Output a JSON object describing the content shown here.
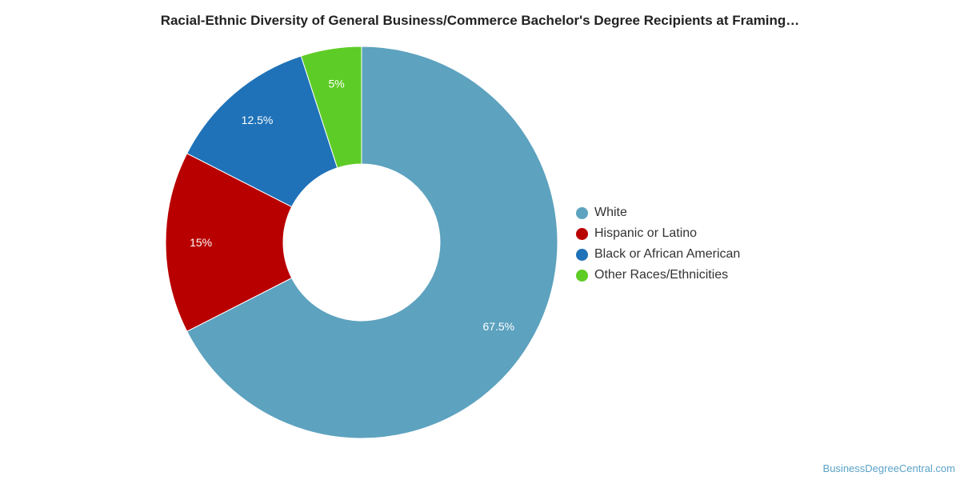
{
  "chart_data": {
    "type": "pie",
    "title": "Racial-Ethnic Diversity of General Business/Commerce Bachelor's Degree Recipients at Framing…",
    "categories": [
      "White",
      "Hispanic or Latino",
      "Black or African American",
      "Other Races/Ethnicities"
    ],
    "values": [
      67.5,
      15,
      12.5,
      5
    ],
    "data_labels": [
      "67.5%",
      "15%",
      "12.5%",
      "5%"
    ],
    "colors": [
      "#5da2bf",
      "#b90000",
      "#1f72b8",
      "#5ecc26"
    ],
    "donut": true,
    "legend_position": "right"
  },
  "watermark": "BusinessDegreeCentral.com"
}
